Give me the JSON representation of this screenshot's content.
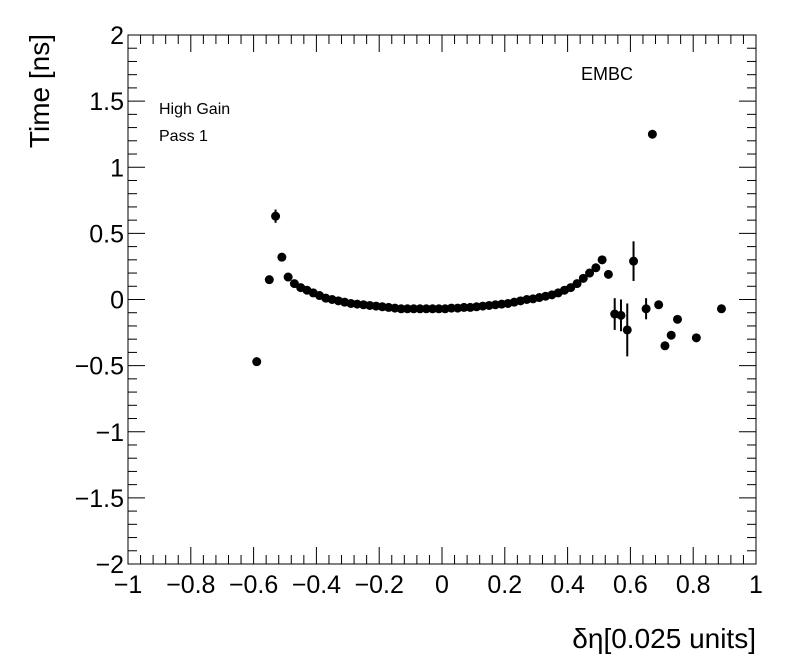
{
  "chart_data": {
    "type": "scatter",
    "title": "",
    "xlabel": "δη[0.025 units]",
    "ylabel": "Time [ns]",
    "xlim": [
      -1,
      1
    ],
    "ylim": [
      -2,
      2
    ],
    "x_ticks": [
      {
        "value": -1,
        "label": "−1"
      },
      {
        "value": -0.8,
        "label": "−0.8"
      },
      {
        "value": -0.6,
        "label": "−0.6"
      },
      {
        "value": -0.4,
        "label": "−0.4"
      },
      {
        "value": -0.2,
        "label": "−0.2"
      },
      {
        "value": 0,
        "label": "0"
      },
      {
        "value": 0.2,
        "label": "0.2"
      },
      {
        "value": 0.4,
        "label": "0.4"
      },
      {
        "value": 0.6,
        "label": "0.6"
      },
      {
        "value": 0.8,
        "label": "0.8"
      },
      {
        "value": 1,
        "label": "1"
      }
    ],
    "y_ticks": [
      {
        "value": -2,
        "label": "−2"
      },
      {
        "value": -1.5,
        "label": "−1.5"
      },
      {
        "value": -1,
        "label": "−1"
      },
      {
        "value": -0.5,
        "label": "−0.5"
      },
      {
        "value": 0,
        "label": "0"
      },
      {
        "value": 0.5,
        "label": "0.5"
      },
      {
        "value": 1,
        "label": "1"
      },
      {
        "value": 1.5,
        "label": "1.5"
      },
      {
        "value": 2,
        "label": "2"
      }
    ],
    "annotations": {
      "gain": "High Gain",
      "pass": "Pass 1",
      "region": "EMBC"
    },
    "grid": false,
    "marker_color": "#000000",
    "series": [
      {
        "points": [
          {
            "x": -0.59,
            "y": -0.47,
            "err": 0
          },
          {
            "x": -0.55,
            "y": 0.15,
            "err": 0
          },
          {
            "x": -0.53,
            "y": 0.63,
            "err": 0.05
          },
          {
            "x": -0.51,
            "y": 0.32,
            "err": 0
          },
          {
            "x": -0.49,
            "y": 0.17,
            "err": 0
          },
          {
            "x": -0.47,
            "y": 0.12,
            "err": 0
          },
          {
            "x": -0.45,
            "y": 0.09,
            "err": 0
          },
          {
            "x": -0.43,
            "y": 0.07,
            "err": 0
          },
          {
            "x": -0.41,
            "y": 0.05,
            "err": 0
          },
          {
            "x": -0.39,
            "y": 0.03,
            "err": 0
          },
          {
            "x": -0.37,
            "y": 0.01,
            "err": 0
          },
          {
            "x": -0.35,
            "y": 0.0,
            "err": 0
          },
          {
            "x": -0.33,
            "y": -0.01,
            "err": 0
          },
          {
            "x": -0.31,
            "y": -0.02,
            "err": 0
          },
          {
            "x": -0.29,
            "y": -0.03,
            "err": 0
          },
          {
            "x": -0.27,
            "y": -0.035,
            "err": 0
          },
          {
            "x": -0.25,
            "y": -0.04,
            "err": 0
          },
          {
            "x": -0.23,
            "y": -0.045,
            "err": 0
          },
          {
            "x": -0.21,
            "y": -0.05,
            "err": 0
          },
          {
            "x": -0.19,
            "y": -0.055,
            "err": 0
          },
          {
            "x": -0.17,
            "y": -0.06,
            "err": 0
          },
          {
            "x": -0.15,
            "y": -0.065,
            "err": 0
          },
          {
            "x": -0.13,
            "y": -0.07,
            "err": 0
          },
          {
            "x": -0.11,
            "y": -0.07,
            "err": 0
          },
          {
            "x": -0.09,
            "y": -0.07,
            "err": 0
          },
          {
            "x": -0.07,
            "y": -0.07,
            "err": 0
          },
          {
            "x": -0.05,
            "y": -0.07,
            "err": 0
          },
          {
            "x": -0.03,
            "y": -0.07,
            "err": 0
          },
          {
            "x": -0.01,
            "y": -0.07,
            "err": 0
          },
          {
            "x": 0.01,
            "y": -0.07,
            "err": 0
          },
          {
            "x": 0.03,
            "y": -0.065,
            "err": 0
          },
          {
            "x": 0.05,
            "y": -0.065,
            "err": 0
          },
          {
            "x": 0.07,
            "y": -0.06,
            "err": 0
          },
          {
            "x": 0.09,
            "y": -0.06,
            "err": 0
          },
          {
            "x": 0.11,
            "y": -0.055,
            "err": 0
          },
          {
            "x": 0.13,
            "y": -0.05,
            "err": 0
          },
          {
            "x": 0.15,
            "y": -0.045,
            "err": 0
          },
          {
            "x": 0.17,
            "y": -0.04,
            "err": 0
          },
          {
            "x": 0.19,
            "y": -0.035,
            "err": 0
          },
          {
            "x": 0.21,
            "y": -0.03,
            "err": 0
          },
          {
            "x": 0.23,
            "y": -0.02,
            "err": 0
          },
          {
            "x": 0.25,
            "y": -0.01,
            "err": 0
          },
          {
            "x": 0.27,
            "y": 0.0,
            "err": 0
          },
          {
            "x": 0.29,
            "y": 0.005,
            "err": 0
          },
          {
            "x": 0.31,
            "y": 0.015,
            "err": 0
          },
          {
            "x": 0.33,
            "y": 0.025,
            "err": 0
          },
          {
            "x": 0.35,
            "y": 0.035,
            "err": 0
          },
          {
            "x": 0.37,
            "y": 0.05,
            "err": 0
          },
          {
            "x": 0.39,
            "y": 0.07,
            "err": 0
          },
          {
            "x": 0.41,
            "y": 0.09,
            "err": 0
          },
          {
            "x": 0.43,
            "y": 0.12,
            "err": 0
          },
          {
            "x": 0.45,
            "y": 0.16,
            "err": 0
          },
          {
            "x": 0.47,
            "y": 0.2,
            "err": 0
          },
          {
            "x": 0.49,
            "y": 0.24,
            "err": 0
          },
          {
            "x": 0.51,
            "y": 0.3,
            "err": 0
          },
          {
            "x": 0.53,
            "y": 0.19,
            "err": 0
          },
          {
            "x": 0.55,
            "y": -0.11,
            "err": 0.12
          },
          {
            "x": 0.57,
            "y": -0.12,
            "err": 0.12
          },
          {
            "x": 0.59,
            "y": -0.23,
            "err": 0.2
          },
          {
            "x": 0.61,
            "y": 0.29,
            "err": 0.15
          },
          {
            "x": 0.65,
            "y": -0.07,
            "err": 0.08
          },
          {
            "x": 0.67,
            "y": 1.25,
            "err": 0
          },
          {
            "x": 0.69,
            "y": -0.04,
            "err": 0
          },
          {
            "x": 0.71,
            "y": -0.35,
            "err": 0
          },
          {
            "x": 0.73,
            "y": -0.27,
            "err": 0
          },
          {
            "x": 0.75,
            "y": -0.15,
            "err": 0
          },
          {
            "x": 0.81,
            "y": -0.29,
            "err": 0
          },
          {
            "x": 0.89,
            "y": -0.07,
            "err": 0
          }
        ]
      }
    ]
  }
}
